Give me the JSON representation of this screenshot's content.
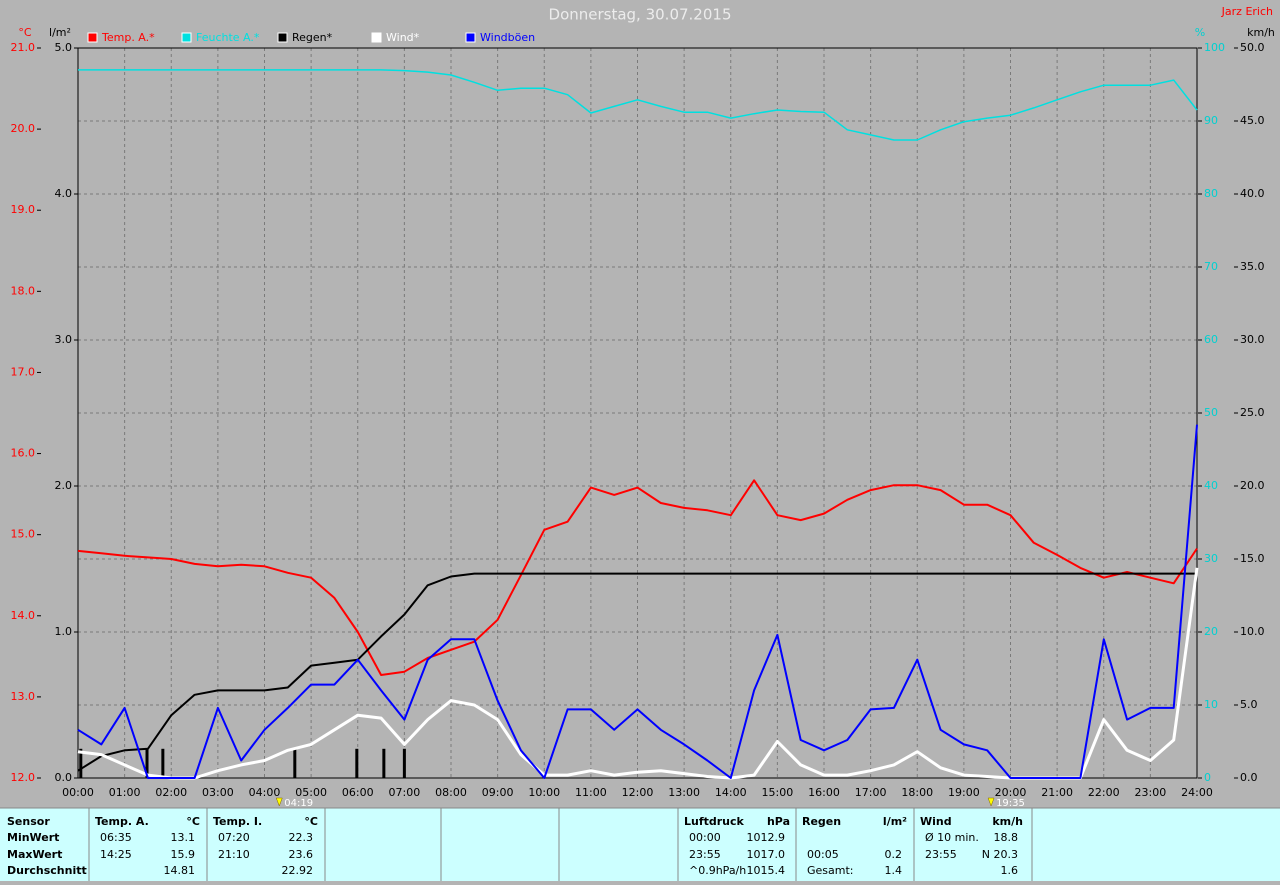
{
  "chart_data": {
    "type": "line",
    "title": "Donnerstag, 30.07.2015",
    "author": "Jarz Erich",
    "x": [
      0,
      0.5,
      1,
      1.5,
      2,
      2.5,
      3,
      3.5,
      4,
      4.5,
      5,
      5.5,
      6,
      6.5,
      7,
      7.5,
      8,
      8.5,
      9,
      9.5,
      10,
      10.5,
      11,
      11.5,
      12,
      12.5,
      13,
      13.5,
      14,
      14.5,
      15,
      15.5,
      16,
      16.5,
      17,
      17.5,
      18,
      18.5,
      19,
      19.5,
      20,
      20.5,
      21,
      21.5,
      22,
      22.5,
      23,
      23.5,
      24
    ],
    "xlim": [
      0,
      24
    ],
    "xticks": [
      {
        "value": 0,
        "label": "00:00"
      },
      {
        "value": 1,
        "label": "01:00"
      },
      {
        "value": 2,
        "label": "02:00"
      },
      {
        "value": 3,
        "label": "03:00"
      },
      {
        "value": 4,
        "label": "04:00"
      },
      {
        "value": 5,
        "label": "05:00"
      },
      {
        "value": 6,
        "label": "06:00"
      },
      {
        "value": 7,
        "label": "07:00"
      },
      {
        "value": 8,
        "label": "08:00"
      },
      {
        "value": 9,
        "label": "09:00"
      },
      {
        "value": 10,
        "label": "10:00"
      },
      {
        "value": 11,
        "label": "11:00"
      },
      {
        "value": 12,
        "label": "12:00"
      },
      {
        "value": 13,
        "label": "13:00"
      },
      {
        "value": 14,
        "label": "14:00"
      },
      {
        "value": 15,
        "label": "15:00"
      },
      {
        "value": 16,
        "label": "16:00"
      },
      {
        "value": 17,
        "label": "17:00"
      },
      {
        "value": 18,
        "label": "18:00"
      },
      {
        "value": 19,
        "label": "19:00"
      },
      {
        "value": 20,
        "label": "20:00"
      },
      {
        "value": 21,
        "label": "21:00"
      },
      {
        "value": 22,
        "label": "22:00"
      },
      {
        "value": 23,
        "label": "23:00"
      },
      {
        "value": 24,
        "label": "24:00"
      }
    ],
    "grid": true,
    "axes": {
      "temp": {
        "unit": "°C",
        "color": "#ff0000",
        "side": "left",
        "lim": [
          12,
          21
        ],
        "ticks": [
          {
            "value": 12,
            "label": "12.0"
          },
          {
            "value": 13,
            "label": "13.0"
          },
          {
            "value": 14,
            "label": "14.0"
          },
          {
            "value": 15,
            "label": "15.0"
          },
          {
            "value": 16,
            "label": "16.0"
          },
          {
            "value": 17,
            "label": "17.0"
          },
          {
            "value": 18,
            "label": "18.0"
          },
          {
            "value": 19,
            "label": "19.0"
          },
          {
            "value": 20,
            "label": "20.0"
          },
          {
            "value": 21,
            "label": "21.0"
          }
        ]
      },
      "rain": {
        "unit": "l/m²",
        "color": "#000000",
        "side": "left",
        "lim": [
          0,
          5
        ],
        "ticks": [
          {
            "value": 0,
            "label": "0.0"
          },
          {
            "value": 1,
            "label": "1.0"
          },
          {
            "value": 2,
            "label": "2.0"
          },
          {
            "value": 3,
            "label": "3.0"
          },
          {
            "value": 4,
            "label": "4.0"
          },
          {
            "value": 5,
            "label": "5.0"
          }
        ]
      },
      "humidity": {
        "unit": "%",
        "color": "#00d0d0",
        "side": "right",
        "lim": [
          0,
          100
        ],
        "ticks": [
          0,
          10,
          20,
          30,
          40,
          50,
          60,
          70,
          80,
          90,
          100
        ]
      },
      "wind": {
        "unit": "km/h",
        "color": "#000000",
        "side": "right",
        "lim": [
          0,
          50
        ],
        "ticks": [
          {
            "value": 0,
            "label": "0.0"
          },
          {
            "value": 5,
            "label": "5.0"
          },
          {
            "value": 10,
            "label": "10.0"
          },
          {
            "value": 15,
            "label": "15.0"
          },
          {
            "value": 20,
            "label": "20.0"
          },
          {
            "value": 25,
            "label": "25.0"
          },
          {
            "value": 30,
            "label": "30.0"
          },
          {
            "value": 35,
            "label": "35.0"
          },
          {
            "value": 40,
            "label": "40.0"
          },
          {
            "value": 45,
            "label": "45.0"
          },
          {
            "value": 50,
            "label": "50.0"
          }
        ]
      }
    },
    "series": [
      {
        "name": "Temp. A.*",
        "color": "#ff0000",
        "axis": "temp",
        "width": 2,
        "values": [
          14.8,
          14.77,
          14.74,
          14.72,
          14.7,
          14.64,
          14.61,
          14.63,
          14.61,
          14.53,
          14.47,
          14.22,
          13.8,
          13.27,
          13.31,
          13.48,
          13.58,
          13.68,
          13.95,
          14.5,
          15.06,
          15.16,
          15.58,
          15.49,
          15.58,
          15.39,
          15.33,
          15.3,
          15.24,
          15.67,
          15.24,
          15.18,
          15.26,
          15.43,
          15.55,
          15.61,
          15.61,
          15.55,
          15.37,
          15.37,
          15.24,
          14.9,
          14.75,
          14.59,
          14.47,
          14.54,
          14.47,
          14.4,
          14.83
        ]
      },
      {
        "name": "Feuchte A.*",
        "color": "#00e0e0",
        "axis": "humidity",
        "width": 1.5,
        "values": [
          97,
          97,
          97,
          97,
          97,
          97,
          97,
          97,
          97,
          97,
          97,
          97,
          97,
          97,
          96.9,
          96.7,
          96.3,
          95.3,
          94.2,
          94.5,
          94.5,
          93.6,
          91.1,
          92,
          92.9,
          92,
          91.2,
          91.2,
          90.4,
          91,
          91.5,
          91.3,
          91.2,
          88.8,
          88.1,
          87.4,
          87.4,
          88.8,
          89.9,
          90.4,
          90.8,
          91.8,
          92.9,
          94,
          94.9,
          94.9,
          94.9,
          95.6,
          91.5
        ]
      },
      {
        "name": "Regen*",
        "color": "#000000",
        "axis": "rain",
        "width": 2,
        "values": [
          0.05,
          0.15,
          0.19,
          0.2,
          0.43,
          0.57,
          0.6,
          0.6,
          0.6,
          0.62,
          0.77,
          0.79,
          0.81,
          0.97,
          1.12,
          1.32,
          1.38,
          1.4,
          1.4,
          1.4,
          1.4,
          1.4,
          1.4,
          1.4,
          1.4,
          1.4,
          1.4,
          1.4,
          1.4,
          1.4,
          1.4,
          1.4,
          1.4,
          1.4,
          1.4,
          1.4,
          1.4,
          1.4,
          1.4,
          1.4,
          1.4,
          1.4,
          1.4,
          1.4,
          1.4,
          1.4,
          1.4,
          1.4,
          1.4
        ]
      },
      {
        "name": "Wind*",
        "color": "#ffffff",
        "axis": "wind",
        "width": 3,
        "values": [
          1.8,
          1.6,
          0.9,
          0.2,
          0,
          0,
          0.5,
          0.9,
          1.2,
          1.9,
          2.3,
          3.3,
          4.3,
          4.1,
          2.3,
          4,
          5.3,
          5,
          4,
          1.6,
          0.2,
          0.2,
          0.5,
          0.2,
          0.4,
          0.5,
          0.3,
          0.1,
          0,
          0.2,
          2.5,
          0.9,
          0.2,
          0.2,
          0.5,
          0.9,
          1.8,
          0.7,
          0.2,
          0.1,
          0,
          0,
          0,
          0,
          4,
          1.9,
          1.2,
          2.6,
          14.4
        ]
      },
      {
        "name": "Windböen",
        "color": "#0000ff",
        "axis": "wind",
        "width": 2,
        "values": [
          3.3,
          2.3,
          4.8,
          0,
          0,
          0,
          4.8,
          1.2,
          3.3,
          4.8,
          6.4,
          6.4,
          8.1,
          6,
          4,
          8.1,
          9.5,
          9.5,
          5.3,
          1.9,
          0,
          4.7,
          4.7,
          3.3,
          4.7,
          3.3,
          2.3,
          1.2,
          0,
          6,
          9.8,
          2.6,
          1.9,
          2.6,
          4.7,
          4.8,
          8.1,
          3.3,
          2.3,
          1.9,
          0,
          0,
          0,
          0,
          9.5,
          4,
          4.8,
          4.8,
          24.2
        ]
      }
    ],
    "rain_bars": {
      "color": "#000000",
      "axis": "rain",
      "x": [
        0.06,
        1.48,
        1.82,
        4.65,
        5.98,
        6.56,
        7.0
      ],
      "values": [
        0.2,
        0.2,
        0.2,
        0.2,
        0.2,
        0.2,
        0.2
      ]
    },
    "annotations": [
      {
        "text": "04:19",
        "x": 4.3167
      },
      {
        "text": "19:35",
        "x": 19.5833
      }
    ]
  },
  "table": {
    "row_labels": [
      "Sensor",
      "MinWert",
      "MaxWert",
      "Durchschnitt"
    ],
    "sections": [
      {
        "title": "Temp. A.",
        "unit": "°C",
        "rows": [
          [
            "06:35",
            "13.1"
          ],
          [
            "14:25",
            "15.9"
          ],
          [
            null,
            "14.81"
          ]
        ]
      },
      {
        "title": "Temp. I.",
        "unit": "°C",
        "rows": [
          [
            "07:20",
            "22.3"
          ],
          [
            "21:10",
            "23.6"
          ],
          [
            null,
            "22.92"
          ]
        ]
      },
      {
        "title": "Luftdruck",
        "unit": "hPa",
        "rows": [
          [
            "00:00",
            "1012.9"
          ],
          [
            "23:55",
            "1017.0"
          ],
          [
            "^0.9hPa/h",
            "1015.4"
          ]
        ]
      },
      {
        "title": "Regen",
        "unit": "l/m²",
        "rows": [
          [
            null,
            null
          ],
          [
            "00:05",
            "0.2"
          ],
          [
            "Gesamt:",
            "1.4"
          ]
        ]
      },
      {
        "title": "Wind",
        "unit": "km/h",
        "rows": [
          [
            "Ø 10 min.",
            "18.8"
          ],
          [
            "23:55",
            "N 20.3"
          ],
          [
            null,
            "1.6"
          ]
        ]
      }
    ]
  }
}
